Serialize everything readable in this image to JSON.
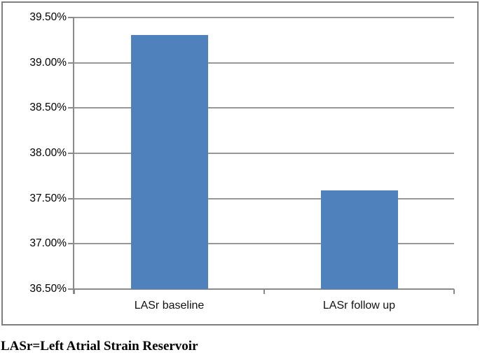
{
  "figure": {
    "caption": "LASr=Left Atrial Strain Reservoir"
  },
  "chart_data": {
    "type": "bar",
    "title": "",
    "xlabel": "",
    "ylabel": "",
    "categories": [
      "LASr baseline",
      "LASr follow up"
    ],
    "values": [
      39.31,
      37.59
    ],
    "unit": "%",
    "ylim": [
      36.5,
      39.5
    ],
    "ytick_step": 0.5,
    "ytick_labels": [
      "39.50%",
      "39.00%",
      "38.50%",
      "38.00%",
      "37.50%",
      "37.00%",
      "36.50%"
    ],
    "grid": true,
    "legend": false,
    "colors": {
      "bar": "#4F81BD",
      "gridline": "#989898",
      "axis": "#8a8a8a",
      "frame_border": "#7f7f7f",
      "text": "#000000"
    }
  }
}
